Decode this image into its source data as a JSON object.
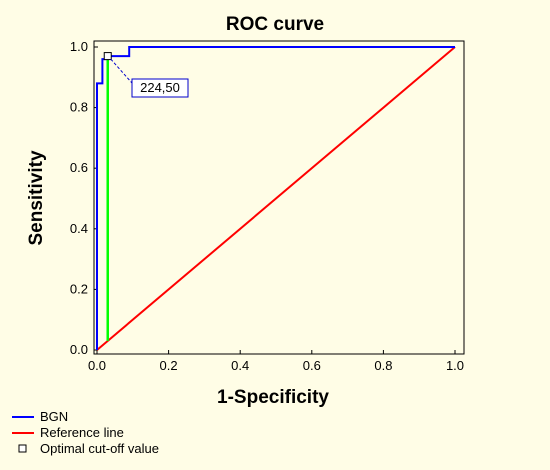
{
  "chart_data": {
    "type": "line",
    "title": "ROC curve",
    "xlabel": "1-Specificity",
    "ylabel": "Sensitivity",
    "xlim": [
      0,
      1
    ],
    "ylim": [
      0,
      1
    ],
    "x_ticks": [
      "0.0",
      "0.2",
      "0.4",
      "0.6",
      "0.8",
      "1.0"
    ],
    "y_ticks": [
      "0.0",
      "0.2",
      "0.4",
      "0.6",
      "0.8",
      "1.0"
    ],
    "grid": false,
    "legend_position": "bottom-left",
    "series": [
      {
        "name": "BGN",
        "color": "#0000ff",
        "x": [
          0.0,
          0.0,
          0.015,
          0.015,
          0.03,
          0.03,
          0.09,
          0.09,
          1.0
        ],
        "y": [
          0.0,
          0.88,
          0.88,
          0.96,
          0.96,
          0.97,
          0.97,
          1.0,
          1.0
        ]
      },
      {
        "name": "Reference line",
        "color": "#ff0000",
        "x": [
          0.0,
          1.0
        ],
        "y": [
          0.0,
          1.0
        ]
      }
    ],
    "optimal_cutoff": {
      "name": "Optimal cut-off value",
      "x": 0.03,
      "y": 0.97,
      "label": "224,50",
      "indicator_color": "#00ff00"
    }
  }
}
